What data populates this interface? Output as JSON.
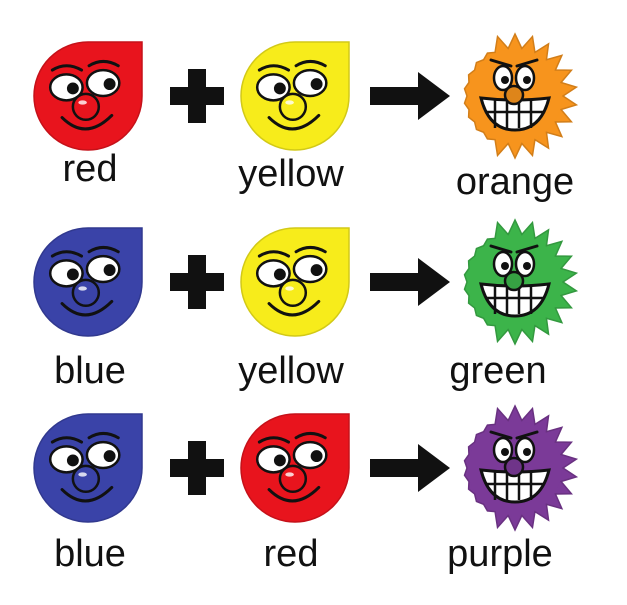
{
  "colors": {
    "red": "#e8141d",
    "yellow": "#f7ec1b",
    "blue": "#3a43a8",
    "orange": "#f7941d",
    "green": "#3cb44a",
    "purple": "#7b3a98",
    "ink": "#111111"
  },
  "rows": [
    {
      "inputs": [
        {
          "label": "red",
          "color": "#e8141d",
          "icon": "red-drop-face-icon"
        },
        {
          "label": "yellow",
          "color": "#f7ec1b",
          "icon": "yellow-drop-face-icon"
        }
      ],
      "result": {
        "label": "orange",
        "color": "#f7941d",
        "icon": "orange-spiky-face-icon"
      }
    },
    {
      "inputs": [
        {
          "label": "blue",
          "color": "#3a43a8",
          "icon": "blue-drop-face-icon"
        },
        {
          "label": "yellow",
          "color": "#f7ec1b",
          "icon": "yellow-drop-face-icon"
        }
      ],
      "result": {
        "label": "green",
        "color": "#3cb44a",
        "icon": "green-spiky-face-icon"
      }
    },
    {
      "inputs": [
        {
          "label": "blue",
          "color": "#3a43a8",
          "icon": "blue-drop-face-icon"
        },
        {
          "label": "red",
          "color": "#e8141d",
          "icon": "red-drop-face-icon"
        }
      ],
      "result": {
        "label": "purple",
        "color": "#7b3a98",
        "icon": "purple-spiky-face-icon"
      }
    }
  ]
}
